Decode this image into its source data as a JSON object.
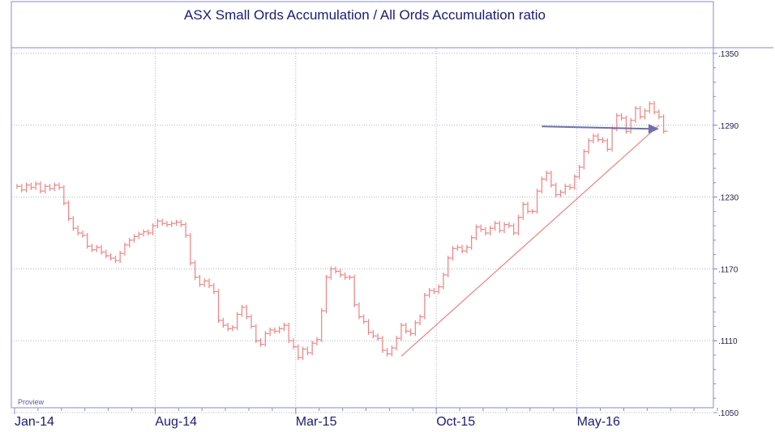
{
  "chart_data": {
    "type": "bar",
    "style": "step-ohlc",
    "title": "ASX Small Ords Accumulation / All Ords Accumulation ratio",
    "watermark": "Proview",
    "colors": {
      "bars": "#f08080",
      "frame": "#8a8ac8",
      "grid": "#b0b0cc",
      "text": "#1a1a7a",
      "trendline": "#f08080",
      "arrow": "#7070a8"
    },
    "ylim": [
      0.105,
      0.135
    ],
    "yticks": [
      {
        "value": 0.135,
        "label": ".1350"
      },
      {
        "value": 0.129,
        "label": ".1290"
      },
      {
        "value": 0.123,
        "label": ".1230"
      },
      {
        "value": 0.117,
        "label": ".1170"
      },
      {
        "value": 0.111,
        "label": ".1110"
      },
      {
        "value": 0.105,
        "label": ".1050"
      }
    ],
    "xticks": [
      {
        "label": "Jan-14",
        "index": 0
      },
      {
        "label": "Aug-14",
        "index": 30
      },
      {
        "label": "Mar-15",
        "index": 60
      },
      {
        "label": "Oct-15",
        "index": 90
      },
      {
        "label": "May-16",
        "index": 120
      }
    ],
    "total_periods": 150,
    "values": [
      0.1239,
      0.1236,
      0.124,
      0.1238,
      0.1241,
      0.1235,
      0.1239,
      0.1237,
      0.124,
      0.1238,
      0.1225,
      0.1212,
      0.1204,
      0.12,
      0.1198,
      0.1189,
      0.1186,
      0.1188,
      0.1184,
      0.1181,
      0.1179,
      0.1177,
      0.1183,
      0.119,
      0.1194,
      0.1197,
      0.1199,
      0.1201,
      0.12,
      0.1206,
      0.121,
      0.1208,
      0.1207,
      0.1208,
      0.1209,
      0.1207,
      0.1198,
      0.1175,
      0.1163,
      0.1157,
      0.116,
      0.1156,
      0.1151,
      0.1127,
      0.1123,
      0.112,
      0.1121,
      0.1132,
      0.1138,
      0.113,
      0.1122,
      0.111,
      0.1107,
      0.1116,
      0.1119,
      0.1118,
      0.112,
      0.1123,
      0.111,
      0.1105,
      0.1096,
      0.1103,
      0.11,
      0.1108,
      0.1111,
      0.1135,
      0.1163,
      0.117,
      0.1168,
      0.1165,
      0.1163,
      0.1163,
      0.114,
      0.113,
      0.1126,
      0.1117,
      0.1114,
      0.1112,
      0.1102,
      0.1099,
      0.1104,
      0.1112,
      0.1123,
      0.1118,
      0.1116,
      0.1125,
      0.113,
      0.1148,
      0.1152,
      0.1151,
      0.1155,
      0.1165,
      0.1179,
      0.1187,
      0.1188,
      0.1185,
      0.1188,
      0.1196,
      0.1205,
      0.1203,
      0.12,
      0.1204,
      0.1208,
      0.1202,
      0.1207,
      0.1206,
      0.12,
      0.1213,
      0.1224,
      0.1218,
      0.1218,
      0.1235,
      0.1245,
      0.125,
      0.124,
      0.1232,
      0.1234,
      0.1239,
      0.1238,
      0.1247,
      0.1255,
      0.1268,
      0.1277,
      0.1281,
      0.1278,
      0.1277,
      0.127,
      0.1287,
      0.1298,
      0.1296,
      0.1285,
      0.1294,
      0.1304,
      0.1297,
      0.1302,
      0.1308,
      0.1301,
      0.1297,
      0.1285
    ],
    "trendline": {
      "from": {
        "index": 82,
        "value": 0.1097
      },
      "to": {
        "index": 137,
        "value": 0.129
      }
    },
    "arrow": {
      "from": {
        "index": 112,
        "value": 0.1289
      },
      "to": {
        "index": 137,
        "value": 0.1287
      }
    }
  }
}
